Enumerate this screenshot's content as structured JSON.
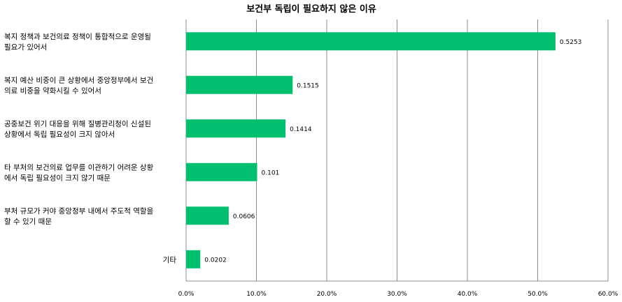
{
  "chart_data": {
    "type": "bar",
    "orientation": "horizontal",
    "title": "보건부 독립이 필요하지 않은 이유",
    "categories": [
      [
        "복지 정책과 보건의료 정책이 통합적으로 운영될",
        "필요가 있어서"
      ],
      [
        "복지 예산 비중이 큰 상황에서 중앙정부에서 보건",
        "의료 비중을 약화시킬 수 있어서"
      ],
      [
        "공중보건 위기 대응을 위해 질병관리청이 신설된",
        "상황에서 독립 필요성이 크지 않아서"
      ],
      [
        "타 부처의 보건의료 업무를 이관하기 어려운 상황",
        "에서 독립 필요성이 크지 않기 때문"
      ],
      [
        "부처 규모가 커야 중앙정부 내에서 주도적 역할을",
        "할 수 있기 때문"
      ],
      [
        "기타"
      ]
    ],
    "values": [
      0.5253,
      0.1515,
      0.1414,
      0.101,
      0.0606,
      0.0202
    ],
    "data_labels": [
      "0.5253",
      "0.1515",
      "0.1414",
      "0.101",
      "0.0606",
      "0.0202"
    ],
    "xlim": [
      0,
      0.6
    ],
    "xticks": [
      "0.0%",
      "10.0%",
      "20.0%",
      "30.0%",
      "40.0%",
      "50.0%",
      "60.0%"
    ],
    "grid": true,
    "legend": "none",
    "bar_color": "#00bf6f"
  }
}
